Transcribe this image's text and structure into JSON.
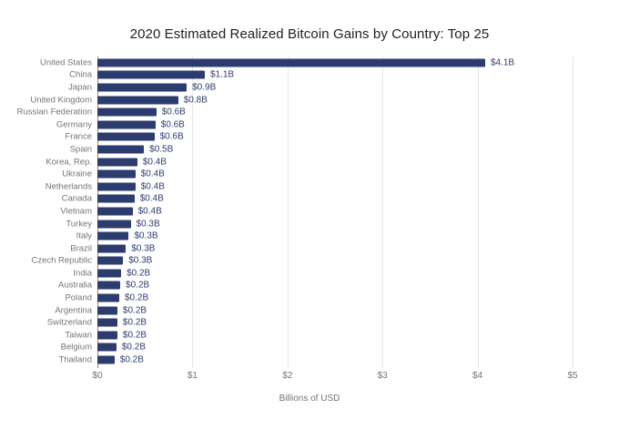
{
  "chart_data": {
    "type": "bar",
    "orientation": "horizontal",
    "title": "2020 Estimated Realized Bitcoin Gains by Country: Top 25",
    "xlabel": "Billions of USD",
    "ylabel": "",
    "xlim": [
      0,
      5
    ],
    "grid": "vertical-only",
    "legend": "none",
    "x_ticks": {
      "values": [
        0,
        1,
        2,
        3,
        4,
        5
      ],
      "labels": [
        "$0",
        "$1",
        "$2",
        "$3",
        "$4",
        "$5"
      ]
    },
    "categories": [
      "United States",
      "China",
      "Japan",
      "United Kingdom",
      "Russian Federation",
      "Germany",
      "France",
      "Spain",
      "Korea, Rep.",
      "Ukraine",
      "Netherlands",
      "Canada",
      "Vietnam",
      "Turkey",
      "Italy",
      "Brazil",
      "Czech Republic",
      "India",
      "Australia",
      "Poland",
      "Argentina",
      "Switzerland",
      "Taiwan",
      "Belgium",
      "Thailand"
    ],
    "values": [
      4.08,
      1.13,
      0.94,
      0.85,
      0.62,
      0.61,
      0.6,
      0.49,
      0.42,
      0.4,
      0.4,
      0.39,
      0.37,
      0.35,
      0.33,
      0.3,
      0.27,
      0.25,
      0.24,
      0.23,
      0.21,
      0.21,
      0.21,
      0.2,
      0.18
    ],
    "value_labels": [
      "$4.1B",
      "$1.1B",
      "$0.9B",
      "$0.8B",
      "$0.6B",
      "$0.6B",
      "$0.6B",
      "$0.5B",
      "$0.4B",
      "$0.4B",
      "$0.4B",
      "$0.4B",
      "$0.4B",
      "$0.3B",
      "$0.3B",
      "$0.3B",
      "$0.3B",
      "$0.2B",
      "$0.2B",
      "$0.2B",
      "$0.2B",
      "$0.2B",
      "$0.2B",
      "$0.2B",
      "$0.2B"
    ],
    "colors": {
      "bar": "#2d3c6e",
      "value_label": "#2d3c6e",
      "category_label": "#757575",
      "tick_label": "#757575",
      "gridline": "#e6e6e6",
      "axis_line": "#8a8a8a",
      "title": "#212121",
      "background": "#ffffff"
    }
  }
}
